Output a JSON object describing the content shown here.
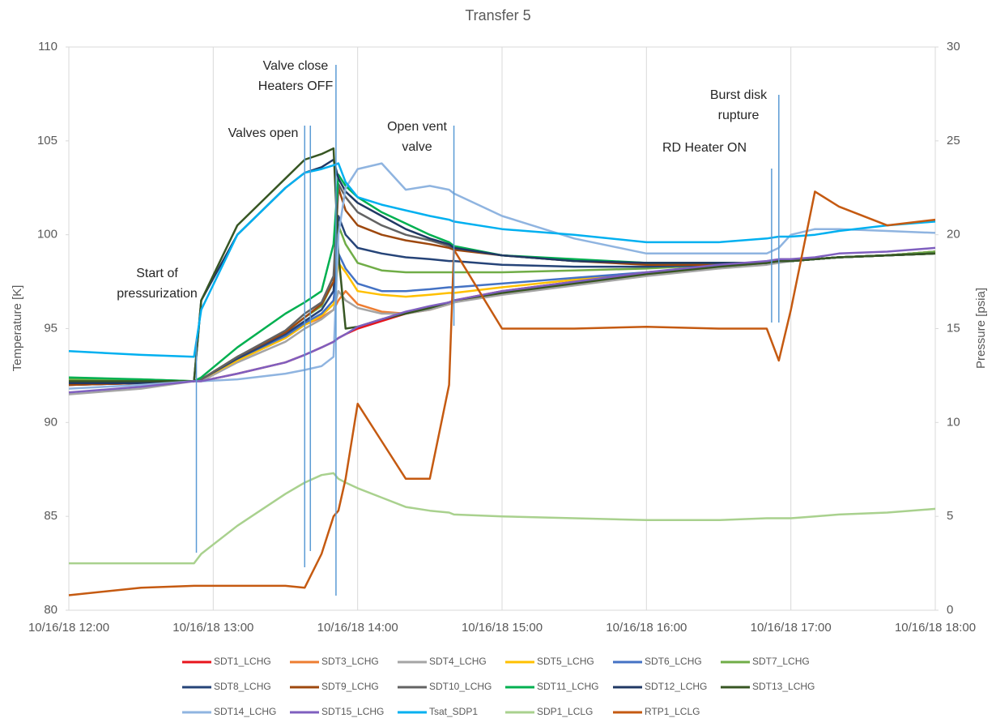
{
  "chart_data": {
    "type": "line",
    "title": "Transfer 5",
    "y_label": "Temperature [K]",
    "y2_label": "Pressure [psia]",
    "xlim": [
      "10/16/18 12:00",
      "10/16/18 18:00"
    ],
    "xticks": [
      "10/16/18 12:00",
      "10/16/18 13:00",
      "10/16/18 14:00",
      "10/16/18 15:00",
      "10/16/18 16:00",
      "10/16/18 17:00",
      "10/16/18 18:00"
    ],
    "ylim": [
      80,
      110
    ],
    "yticks": [
      80,
      85,
      90,
      95,
      100,
      105,
      110
    ],
    "y2lim": [
      0,
      30
    ],
    "y2ticks": [
      0,
      5,
      10,
      15,
      20,
      25,
      30
    ],
    "grid": true,
    "legend": "bottom",
    "x": [
      "10/16/18 12:00",
      "10/16/18 12:30",
      "10/16/18 12:52",
      "10/16/18 12:55",
      "10/16/18 13:10",
      "10/16/18 13:30",
      "10/16/18 13:38",
      "10/16/18 13:45",
      "10/16/18 13:50",
      "10/16/18 13:52",
      "10/16/18 13:55",
      "10/16/18 14:00",
      "10/16/18 14:10",
      "10/16/18 14:20",
      "10/16/18 14:30",
      "10/16/18 14:38",
      "10/16/18 14:40",
      "10/16/18 15:00",
      "10/16/18 15:30",
      "10/16/18 16:00",
      "10/16/18 16:30",
      "10/16/18 16:50",
      "10/16/18 16:55",
      "10/16/18 17:00",
      "10/16/18 17:10",
      "10/16/18 17:20",
      "10/16/18 17:40",
      "10/16/18 18:00"
    ],
    "series": [
      {
        "name": "SDT1_LCHG",
        "color": "#e8141c",
        "values": [
          92.0,
          92.1,
          92.2,
          92.2,
          92.6,
          93.2,
          93.6,
          94.0,
          94.3,
          94.5,
          94.7,
          95.0,
          95.4,
          95.8,
          96.1,
          96.4,
          96.5,
          97.0,
          97.5,
          97.9,
          98.3,
          98.5,
          98.6,
          98.6,
          98.7,
          98.8,
          98.9,
          99.1
        ]
      },
      {
        "name": "SDT3_LCHG",
        "color": "#ed7d31",
        "values": [
          92.1,
          92.2,
          92.2,
          92.3,
          93.3,
          94.5,
          95.2,
          95.6,
          96.0,
          96.5,
          97.0,
          96.3,
          95.9,
          95.8,
          96.0,
          96.3,
          96.4,
          96.9,
          97.4,
          97.9,
          98.3,
          98.5,
          98.6,
          98.6,
          98.7,
          98.8,
          98.9,
          99.1
        ]
      },
      {
        "name": "SDT4_LCHG",
        "color": "#a5a5a5",
        "values": [
          91.5,
          91.8,
          92.2,
          92.2,
          93.2,
          94.3,
          95.0,
          95.5,
          96.0,
          97.0,
          96.5,
          96.1,
          95.8,
          95.8,
          96.0,
          96.3,
          96.4,
          96.8,
          97.3,
          97.8,
          98.2,
          98.4,
          98.5,
          98.6,
          98.7,
          98.8,
          98.9,
          99.0
        ]
      },
      {
        "name": "SDT5_LCHG",
        "color": "#ffc000",
        "values": [
          92.2,
          92.2,
          92.2,
          92.3,
          93.3,
          94.5,
          95.2,
          95.7,
          96.3,
          98.5,
          98.0,
          97.0,
          96.8,
          96.7,
          96.8,
          96.9,
          96.9,
          97.2,
          97.6,
          98.0,
          98.3,
          98.5,
          98.6,
          98.6,
          98.7,
          98.8,
          98.9,
          99.1
        ]
      },
      {
        "name": "SDT6_LCHG",
        "color": "#4472c4",
        "values": [
          92.1,
          92.2,
          92.2,
          92.3,
          93.4,
          94.6,
          95.3,
          95.8,
          96.5,
          99.0,
          98.2,
          97.4,
          97.0,
          97.0,
          97.1,
          97.2,
          97.2,
          97.4,
          97.7,
          98.0,
          98.3,
          98.5,
          98.6,
          98.6,
          98.7,
          98.8,
          98.9,
          99.1
        ]
      },
      {
        "name": "SDT7_LCHG",
        "color": "#70ad47",
        "values": [
          92.3,
          92.3,
          92.2,
          92.3,
          93.5,
          94.8,
          95.6,
          96.2,
          97.5,
          100.5,
          99.5,
          98.5,
          98.1,
          98.0,
          98.0,
          98.0,
          98.0,
          98.0,
          98.1,
          98.2,
          98.4,
          98.5,
          98.6,
          98.6,
          98.7,
          98.8,
          98.9,
          99.1
        ]
      },
      {
        "name": "SDT8_LCHG",
        "color": "#264478",
        "values": [
          92.0,
          92.1,
          92.2,
          92.3,
          93.4,
          94.7,
          95.4,
          96.0,
          97.0,
          101.0,
          100.0,
          99.3,
          99.0,
          98.8,
          98.7,
          98.6,
          98.6,
          98.4,
          98.3,
          98.3,
          98.4,
          98.5,
          98.6,
          98.6,
          98.7,
          98.8,
          98.9,
          99.0
        ]
      },
      {
        "name": "SDT9_LCHG",
        "color": "#9e480e",
        "values": [
          92.0,
          92.1,
          92.2,
          92.3,
          93.5,
          94.8,
          95.6,
          96.3,
          97.5,
          102.5,
          101.3,
          100.5,
          100.0,
          99.7,
          99.5,
          99.3,
          99.2,
          98.9,
          98.6,
          98.4,
          98.4,
          98.5,
          98.6,
          98.6,
          98.7,
          98.8,
          98.9,
          99.0
        ]
      },
      {
        "name": "SDT10_LCHG",
        "color": "#636363",
        "values": [
          92.1,
          92.2,
          92.2,
          92.3,
          93.5,
          94.9,
          95.8,
          96.4,
          97.8,
          102.7,
          102.0,
          101.2,
          100.5,
          100.0,
          99.7,
          99.4,
          99.3,
          98.9,
          98.6,
          98.5,
          98.5,
          98.5,
          98.6,
          98.6,
          98.7,
          98.8,
          98.9,
          99.0
        ]
      },
      {
        "name": "SDT11_LCHG",
        "color": "#00b050",
        "values": [
          92.4,
          92.3,
          92.2,
          92.4,
          94.0,
          95.8,
          96.4,
          97.0,
          99.5,
          103.2,
          102.6,
          102.0,
          101.2,
          100.6,
          100.0,
          99.6,
          99.4,
          98.9,
          98.7,
          98.5,
          98.5,
          98.5,
          98.6,
          98.6,
          98.7,
          98.8,
          98.9,
          99.0
        ]
      },
      {
        "name": "SDT12_LCHG",
        "color": "#203864",
        "values": [
          92.1,
          92.1,
          92.2,
          96.5,
          100.0,
          102.5,
          103.3,
          103.6,
          104.0,
          103.0,
          102.3,
          101.7,
          101.0,
          100.3,
          99.8,
          99.5,
          99.3,
          98.9,
          98.6,
          98.5,
          98.5,
          98.5,
          98.6,
          98.6,
          98.7,
          98.8,
          98.9,
          99.0
        ]
      },
      {
        "name": "SDT13_LCHG",
        "color": "#375623",
        "values": [
          92.2,
          92.2,
          92.2,
          96.5,
          100.5,
          103.0,
          104.0,
          104.3,
          104.6,
          99.0,
          95.0,
          95.1,
          95.5,
          95.8,
          96.1,
          96.4,
          96.5,
          96.9,
          97.4,
          97.9,
          98.3,
          98.5,
          98.6,
          98.6,
          98.7,
          98.8,
          98.9,
          99.0
        ]
      },
      {
        "name": "SDT14_LCHG",
        "color": "#8fb4e0",
        "values": [
          91.8,
          92.0,
          92.2,
          92.2,
          92.3,
          92.6,
          92.8,
          93.0,
          93.5,
          100.0,
          102.5,
          103.5,
          103.8,
          102.4,
          102.6,
          102.4,
          102.2,
          101.0,
          99.8,
          99.0,
          99.0,
          99.0,
          99.3,
          100.0,
          100.3,
          100.3,
          100.2,
          100.1
        ]
      },
      {
        "name": "SDT15_LCHG",
        "color": "#7f5fbf",
        "values": [
          91.6,
          91.9,
          92.2,
          92.2,
          92.6,
          93.2,
          93.6,
          94.0,
          94.3,
          94.5,
          94.7,
          95.1,
          95.5,
          95.9,
          96.2,
          96.4,
          96.5,
          97.0,
          97.5,
          98.0,
          98.4,
          98.6,
          98.7,
          98.7,
          98.8,
          99.0,
          99.1,
          99.3
        ]
      },
      {
        "name": "Tsat_SDP1",
        "color": "#00b0f0",
        "values": [
          93.8,
          93.6,
          93.5,
          96.0,
          100.0,
          102.5,
          103.3,
          103.5,
          103.7,
          103.8,
          102.8,
          102.0,
          101.6,
          101.3,
          101.0,
          100.8,
          100.7,
          100.3,
          100.0,
          99.6,
          99.6,
          99.8,
          99.9,
          99.9,
          100.0,
          100.2,
          100.5,
          100.7
        ]
      },
      {
        "name": "SDP1_LCLG",
        "color": "#a9d18e",
        "axis": "y2",
        "values": [
          2.5,
          2.5,
          2.5,
          3.0,
          4.5,
          6.2,
          6.8,
          7.2,
          7.3,
          7.0,
          6.8,
          6.5,
          6.0,
          5.5,
          5.3,
          5.2,
          5.1,
          5.0,
          4.9,
          4.8,
          4.8,
          4.9,
          4.9,
          4.9,
          5.0,
          5.1,
          5.2,
          5.4
        ]
      },
      {
        "name": "RTP1_LCLG",
        "color": "#c55a11",
        "values": [
          80.8,
          81.2,
          81.3,
          81.3,
          81.3,
          81.3,
          81.2,
          83.0,
          85.0,
          85.3,
          87.0,
          91.0,
          89.0,
          87.0,
          87.0,
          92.0,
          99.2,
          95.0,
          95.0,
          95.1,
          95.0,
          95.0,
          93.3,
          96.0,
          102.3,
          101.5,
          100.5,
          100.8
        ]
      }
    ],
    "annotations": [
      {
        "text": [
          "Start of",
          "pressurization"
        ],
        "x": "10/16/18 12:53"
      },
      {
        "text": [
          "Valves open"
        ],
        "x": "10/16/18 13:38"
      },
      {
        "text": [
          "Valve close",
          "Heaters OFF"
        ],
        "x": "10/16/18 13:51"
      },
      {
        "text": [
          "Open vent",
          "valve"
        ],
        "x": "10/16/18 14:40"
      },
      {
        "text": [
          "Burst disk",
          "rupture"
        ],
        "x": "10/16/18 16:55"
      },
      {
        "text": [
          "RD Heater ON"
        ],
        "x": "10/16/18 16:52"
      }
    ]
  }
}
